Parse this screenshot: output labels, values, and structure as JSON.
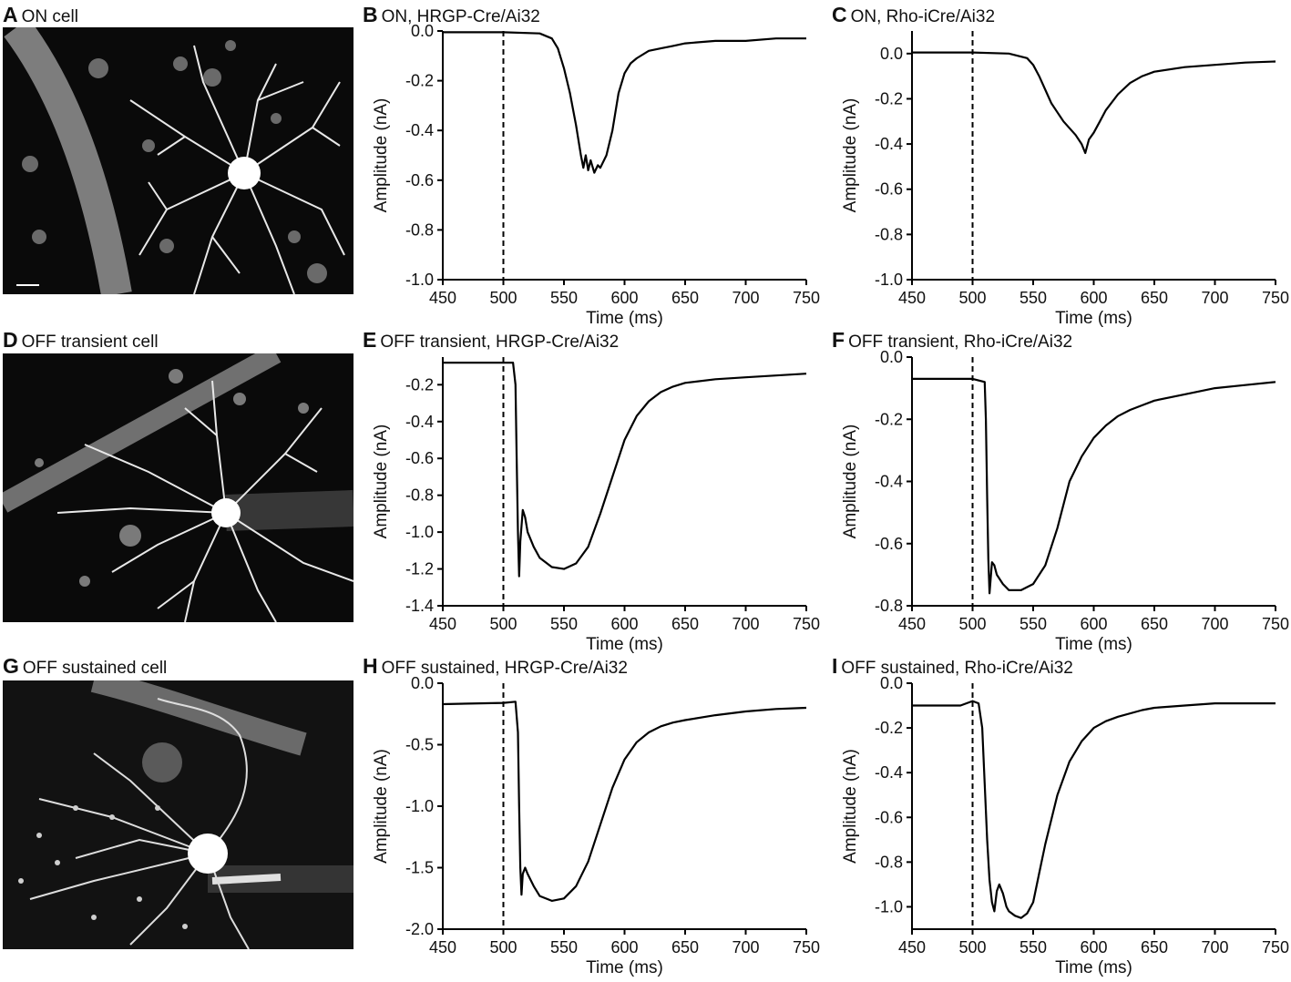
{
  "panels": {
    "a": {
      "letter": "A",
      "title": "ON cell"
    },
    "d": {
      "letter": "D",
      "title": "OFF transient cell"
    },
    "g": {
      "letter": "G",
      "title": "OFF sustained cell"
    }
  },
  "chart_data": [
    {
      "id": "b",
      "letter": "B",
      "type": "line",
      "title": "ON, HRGP-Cre/Ai32",
      "xlabel": "Time (ms)",
      "ylabel": "Amplitude (nA)",
      "xlim": [
        450,
        750
      ],
      "ylim": [
        -1.0,
        0.0
      ],
      "xticks": [
        450,
        500,
        550,
        600,
        650,
        700,
        750
      ],
      "yticks": [
        0.0,
        -0.2,
        -0.4,
        -0.6,
        -0.8,
        -1.0
      ],
      "ytick_labels": [
        "0.0",
        "-0.2",
        "-0.4",
        "-0.6",
        "-0.8",
        "-1.0"
      ],
      "stimulus_x": 500,
      "x": [
        450,
        500,
        530,
        540,
        545,
        550,
        555,
        560,
        564,
        566,
        568,
        570,
        572,
        575,
        578,
        580,
        585,
        590,
        595,
        600,
        605,
        610,
        620,
        630,
        640,
        650,
        675,
        700,
        725,
        750
      ],
      "y": [
        -0.005,
        -0.005,
        -0.01,
        -0.03,
        -0.07,
        -0.15,
        -0.25,
        -0.38,
        -0.5,
        -0.55,
        -0.5,
        -0.56,
        -0.52,
        -0.57,
        -0.54,
        -0.55,
        -0.5,
        -0.4,
        -0.25,
        -0.17,
        -0.13,
        -0.11,
        -0.08,
        -0.07,
        -0.06,
        -0.05,
        -0.04,
        -0.04,
        -0.03,
        -0.03
      ]
    },
    {
      "id": "c",
      "letter": "C",
      "type": "line",
      "title": "ON, Rho-iCre/Ai32",
      "xlabel": "Time (ms)",
      "ylabel": "Amplitude (nA)",
      "xlim": [
        450,
        750
      ],
      "ylim": [
        -1.0,
        0.1
      ],
      "xticks": [
        450,
        500,
        550,
        600,
        650,
        700,
        750
      ],
      "yticks": [
        0.0,
        -0.2,
        -0.4,
        -0.6,
        -0.8,
        -1.0
      ],
      "ytick_labels": [
        "0.0",
        "-0.2",
        "-0.4",
        "-0.6",
        "-0.8",
        "-1.0"
      ],
      "stimulus_x": 500,
      "x": [
        450,
        500,
        530,
        545,
        550,
        555,
        560,
        565,
        570,
        575,
        580,
        585,
        590,
        593,
        596,
        600,
        605,
        610,
        620,
        630,
        640,
        650,
        675,
        700,
        725,
        750
      ],
      "y": [
        0.005,
        0.005,
        0.0,
        -0.02,
        -0.05,
        -0.1,
        -0.16,
        -0.22,
        -0.26,
        -0.3,
        -0.33,
        -0.36,
        -0.4,
        -0.44,
        -0.38,
        -0.35,
        -0.3,
        -0.25,
        -0.18,
        -0.13,
        -0.1,
        -0.08,
        -0.06,
        -0.05,
        -0.04,
        -0.035
      ]
    },
    {
      "id": "e",
      "letter": "E",
      "type": "line",
      "title": "OFF transient, HRGP-Cre/Ai32",
      "xlabel": "Time (ms)",
      "ylabel": "Amplitude (nA)",
      "xlim": [
        450,
        750
      ],
      "ylim": [
        -1.4,
        -0.05
      ],
      "xticks": [
        450,
        500,
        550,
        600,
        650,
        700,
        750
      ],
      "yticks": [
        -0.2,
        -0.4,
        -0.6,
        -0.8,
        -1.0,
        -1.2,
        -1.4
      ],
      "ytick_labels": [
        "-0.2",
        "-0.4",
        "-0.6",
        "-0.8",
        "-1.0",
        "-1.2",
        "-1.4"
      ],
      "stimulus_x": 500,
      "x": [
        450,
        500,
        508,
        510,
        511,
        512,
        513,
        514,
        516,
        518,
        520,
        525,
        530,
        540,
        550,
        560,
        570,
        580,
        590,
        600,
        610,
        620,
        630,
        640,
        650,
        675,
        700,
        725,
        750
      ],
      "y": [
        -0.08,
        -0.08,
        -0.08,
        -0.2,
        -0.6,
        -1.0,
        -1.24,
        -1.05,
        -0.88,
        -0.92,
        -1.0,
        -1.08,
        -1.14,
        -1.19,
        -1.2,
        -1.17,
        -1.08,
        -0.9,
        -0.7,
        -0.5,
        -0.37,
        -0.29,
        -0.24,
        -0.21,
        -0.19,
        -0.17,
        -0.16,
        -0.15,
        -0.14
      ]
    },
    {
      "id": "f",
      "letter": "F",
      "type": "line",
      "title": "OFF transient, Rho-iCre/Ai32",
      "xlabel": "Time (ms)",
      "ylabel": "Amplitude (nA)",
      "xlim": [
        450,
        750
      ],
      "ylim": [
        -0.8,
        0.0
      ],
      "xticks": [
        450,
        500,
        550,
        600,
        650,
        700,
        750
      ],
      "yticks": [
        0.0,
        -0.2,
        -0.4,
        -0.6,
        -0.8
      ],
      "ytick_labels": [
        "0.0",
        "-0.2",
        "-0.4",
        "-0.6",
        "-0.8"
      ],
      "stimulus_x": 500,
      "x": [
        450,
        500,
        510,
        511,
        512,
        513,
        514,
        516,
        518,
        520,
        525,
        530,
        540,
        550,
        560,
        570,
        580,
        590,
        600,
        610,
        620,
        630,
        640,
        650,
        675,
        700,
        725,
        750
      ],
      "y": [
        -0.07,
        -0.07,
        -0.08,
        -0.2,
        -0.45,
        -0.65,
        -0.76,
        -0.66,
        -0.67,
        -0.7,
        -0.73,
        -0.75,
        -0.75,
        -0.73,
        -0.67,
        -0.55,
        -0.4,
        -0.32,
        -0.26,
        -0.22,
        -0.19,
        -0.17,
        -0.155,
        -0.14,
        -0.12,
        -0.1,
        -0.09,
        -0.08
      ]
    },
    {
      "id": "h",
      "letter": "H",
      "type": "line",
      "title": "OFF sustained, HRGP-Cre/Ai32",
      "xlabel": "Time (ms)",
      "ylabel": "Amplitude (nA)",
      "xlim": [
        450,
        750
      ],
      "ylim": [
        -2.0,
        0.0
      ],
      "xticks": [
        450,
        500,
        550,
        600,
        650,
        700,
        750
      ],
      "yticks": [
        0.0,
        -0.5,
        -1.0,
        -1.5,
        -2.0
      ],
      "ytick_labels": [
        "0.0",
        "-0.5",
        "-1.0",
        "-1.5",
        "-2.0"
      ],
      "stimulus_x": 500,
      "x": [
        450,
        500,
        510,
        512,
        513,
        514,
        515,
        516,
        518,
        520,
        525,
        530,
        540,
        550,
        560,
        570,
        580,
        590,
        600,
        610,
        620,
        630,
        640,
        650,
        675,
        700,
        725,
        750
      ],
      "y": [
        -0.17,
        -0.16,
        -0.15,
        -0.4,
        -1.0,
        -1.5,
        -1.72,
        -1.55,
        -1.5,
        -1.55,
        -1.65,
        -1.73,
        -1.77,
        -1.75,
        -1.65,
        -1.45,
        -1.15,
        -0.85,
        -0.62,
        -0.48,
        -0.4,
        -0.35,
        -0.32,
        -0.3,
        -0.26,
        -0.23,
        -0.21,
        -0.2
      ]
    },
    {
      "id": "i",
      "letter": "I",
      "type": "line",
      "title": "OFF sustained, Rho-iCre/Ai32",
      "xlabel": "Time (ms)",
      "ylabel": "Amplitude (nA)",
      "xlim": [
        450,
        750
      ],
      "ylim": [
        -1.1,
        0.0
      ],
      "xticks": [
        450,
        500,
        550,
        600,
        650,
        700,
        750
      ],
      "yticks": [
        0.0,
        -0.2,
        -0.4,
        -0.6,
        -0.8,
        -1.0
      ],
      "ytick_labels": [
        "0.0",
        "-0.2",
        "-0.4",
        "-0.6",
        "-0.8",
        "-1.0"
      ],
      "stimulus_x": 500,
      "x": [
        450,
        490,
        500,
        505,
        508,
        510,
        512,
        514,
        516,
        518,
        520,
        522,
        525,
        528,
        530,
        535,
        540,
        545,
        550,
        555,
        560,
        570,
        580,
        590,
        600,
        610,
        620,
        640,
        650,
        675,
        700,
        725,
        750
      ],
      "y": [
        -0.1,
        -0.1,
        -0.08,
        -0.09,
        -0.2,
        -0.45,
        -0.7,
        -0.88,
        -0.98,
        -1.02,
        -0.93,
        -0.9,
        -0.94,
        -1.0,
        -1.02,
        -1.04,
        -1.05,
        -1.03,
        -0.98,
        -0.85,
        -0.72,
        -0.5,
        -0.35,
        -0.26,
        -0.2,
        -0.17,
        -0.15,
        -0.12,
        -0.11,
        -0.1,
        -0.09,
        -0.09,
        -0.09
      ]
    }
  ]
}
